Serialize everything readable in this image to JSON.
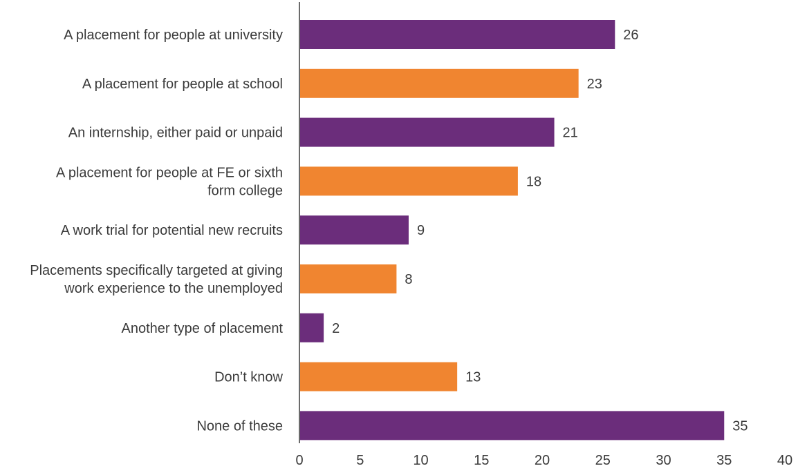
{
  "chart_data": {
    "type": "bar",
    "orientation": "horizontal",
    "categories": [
      [
        "A placement for people at university"
      ],
      [
        "A placement for people at school"
      ],
      [
        "An internship, either paid or unpaid"
      ],
      [
        "A placement for people at FE or sixth",
        "form college"
      ],
      [
        "A work trial for potential new recruits"
      ],
      [
        "Placements specifically targeted at giving",
        "work experience to the unemployed"
      ],
      [
        "Another type of placement"
      ],
      [
        "Don’t know"
      ],
      [
        "None of these"
      ]
    ],
    "values": [
      26,
      23,
      21,
      18,
      9,
      8,
      2,
      13,
      35
    ],
    "value_labels": [
      "26",
      "23",
      "21",
      "18",
      "9",
      "8",
      "2",
      "13",
      "35"
    ],
    "bar_colors": [
      "#6b2d7b",
      "#f08530",
      "#6b2d7b",
      "#f08530",
      "#6b2d7b",
      "#f08530",
      "#6b2d7b",
      "#f08530",
      "#6b2d7b"
    ],
    "xlim": [
      0,
      40
    ],
    "xticks": [
      0,
      5,
      10,
      15,
      20,
      25,
      30,
      35,
      40
    ],
    "xtick_labels": [
      "0",
      "5",
      "10",
      "15",
      "20",
      "25",
      "30",
      "35",
      "40"
    ],
    "grid": false,
    "legend": "none",
    "title": "",
    "xlabel": "",
    "ylabel": ""
  }
}
